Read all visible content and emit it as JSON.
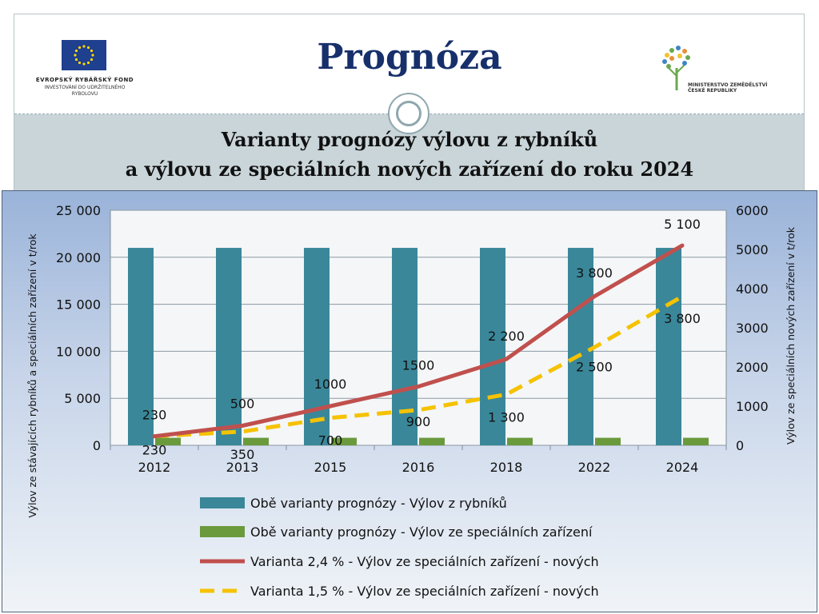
{
  "header": {
    "title": "Prognóza",
    "subtitle_line1": "Varianty prognózy výlovu z rybníků",
    "subtitle_line2": "a výlovu ze speciálních nových zařízení do roku 2024"
  },
  "logos": {
    "left_line1": "EVROPSKÝ RYBÁŘSKÝ FOND",
    "left_line2": "INVESTOVÁNÍ DO UDRŽITELNÉHO",
    "left_line3": "RYBOLOVU",
    "right_line1": "MINISTERSTVO ZEMĚDĚLSTVÍ",
    "right_line2": "ČESKÉ REPUBLIKY"
  },
  "colors": {
    "bars_ponds": "#3a8799",
    "bars_special": "#6a9a3c",
    "line_24": "#c0504d",
    "line_15": "#f5c200",
    "title": "#17306b"
  },
  "chart_data": {
    "type": "bar",
    "categories": [
      "2012",
      "2013",
      "2015",
      "2016",
      "2018",
      "2022",
      "2024"
    ],
    "y_left_label": "Výlov ze stávajících rybníků a speciálních zařízení v t/rok",
    "y_right_label": "Výlov ze speciálních nových zařízení v t/rok",
    "y_left_lim": [
      0,
      25000
    ],
    "y_left_ticks": [
      "0",
      "5 000",
      "10 000",
      "15 000",
      "20 000",
      "25 000"
    ],
    "y_right_lim": [
      0,
      6000
    ],
    "y_right_ticks": [
      "0",
      "1000",
      "2000",
      "3000",
      "4000",
      "5000",
      "6000"
    ],
    "series": [
      {
        "name": "Obě varianty prognózy - Výlov z rybníků",
        "type": "bar",
        "axis": "left",
        "values": [
          21000,
          21000,
          21000,
          21000,
          21000,
          21000,
          21000
        ]
      },
      {
        "name": "Obě varianty prognózy  - Výlov ze speciálních zařízení",
        "type": "bar",
        "axis": "left",
        "values": [
          800,
          800,
          800,
          800,
          800,
          800,
          800
        ]
      },
      {
        "name": "Varianta 2,4 % - Výlov ze speciálních zařízení - nových",
        "type": "line",
        "axis": "right",
        "values": [
          230,
          500,
          1000,
          1500,
          2200,
          3800,
          5100
        ],
        "labels": [
          "230",
          "500",
          "1000",
          "1500",
          "2 200",
          "3 800",
          "5 100"
        ]
      },
      {
        "name": "Varianta 1,5 % - Výlov ze speciálních zařízení - nových",
        "type": "line",
        "axis": "right",
        "values": [
          230,
          350,
          700,
          900,
          1300,
          2500,
          3800
        ],
        "labels": [
          "230",
          "350",
          "700",
          "900",
          "1 300",
          "2 500",
          "3 800"
        ]
      }
    ]
  }
}
